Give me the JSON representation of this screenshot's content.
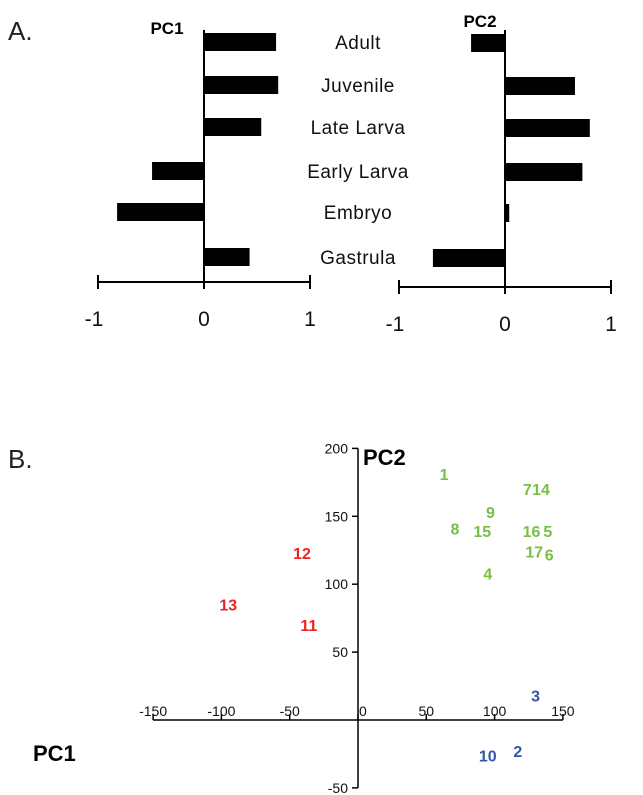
{
  "panel_a_label": "A.",
  "panel_b_label": "B.",
  "chart_data": [
    {
      "type": "bar",
      "orientation": "horizontal",
      "title": "PC1",
      "categories": [
        "Adult",
        "Juvenile",
        "Late Larva",
        "Early Larva",
        "Embryo",
        "Gastrula"
      ],
      "values": [
        0.68,
        0.7,
        0.54,
        -0.49,
        -0.82,
        0.43
      ],
      "xlim": [
        -1,
        1
      ],
      "xticks": [
        "-1",
        "0",
        "1"
      ],
      "bar_color": "#000000"
    },
    {
      "type": "bar",
      "orientation": "horizontal",
      "title": "PC2",
      "categories": [
        "Adult",
        "Juvenile",
        "Late Larva",
        "Early Larva",
        "Embryo",
        "Gastrula"
      ],
      "values": [
        -0.32,
        0.66,
        0.8,
        0.73,
        0.04,
        -0.68
      ],
      "xlim": [
        -1,
        1
      ],
      "xticks": [
        "-1",
        "0",
        "1"
      ],
      "bar_color": "#000000"
    },
    {
      "type": "scatter",
      "xlabel": "PC1",
      "ylabel": "PC2",
      "xlim": [
        -150,
        150
      ],
      "ylim": [
        -50,
        200
      ],
      "xticks": [
        "-150",
        "-100",
        "-50",
        "0",
        "50",
        "100",
        "150"
      ],
      "yticks": [
        "-50",
        "50",
        "100",
        "150",
        "200"
      ],
      "colors": {
        "red": "#ee2222",
        "green": "#77c043",
        "blue": "#3355aa"
      },
      "points": [
        {
          "label": "1",
          "x": 63,
          "y": 181,
          "group": "green"
        },
        {
          "label": "7",
          "x": 124,
          "y": 170,
          "group": "green"
        },
        {
          "label": "14",
          "x": 134,
          "y": 170,
          "group": "green"
        },
        {
          "label": "9",
          "x": 97,
          "y": 153,
          "group": "green"
        },
        {
          "label": "8",
          "x": 71,
          "y": 141,
          "group": "green"
        },
        {
          "label": "15",
          "x": 91,
          "y": 139,
          "group": "green"
        },
        {
          "label": "16",
          "x": 127,
          "y": 139,
          "group": "green"
        },
        {
          "label": "5",
          "x": 139,
          "y": 139,
          "group": "green"
        },
        {
          "label": "17",
          "x": 129,
          "y": 124,
          "group": "green"
        },
        {
          "label": "6",
          "x": 140,
          "y": 122,
          "group": "green"
        },
        {
          "label": "4",
          "x": 95,
          "y": 108,
          "group": "green"
        },
        {
          "label": "12",
          "x": -41,
          "y": 123,
          "group": "red"
        },
        {
          "label": "13",
          "x": -95,
          "y": 85,
          "group": "red"
        },
        {
          "label": "11",
          "x": -36,
          "y": 70,
          "group": "red"
        },
        {
          "label": "3",
          "x": 130,
          "y": 18,
          "group": "blue"
        },
        {
          "label": "2",
          "x": 117,
          "y": -23,
          "group": "blue"
        },
        {
          "label": "10",
          "x": 95,
          "y": -26,
          "group": "blue"
        }
      ]
    }
  ]
}
